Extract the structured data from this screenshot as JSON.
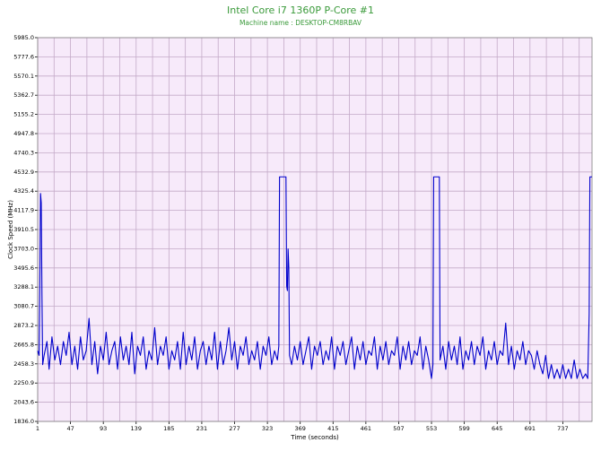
{
  "chart_data": {
    "type": "line",
    "title": "Intel Core i7 1360P P-Core #1",
    "subtitle": "Machine name : DESKTOP-CM8RBAV",
    "xlabel": "Time (seconds)",
    "ylabel": "Clock Speed (MHz)",
    "color": "#0000cc",
    "grid": true,
    "xlim": [
      1,
      778
    ],
    "ylim": [
      1836,
      5985
    ],
    "xticks": [
      1,
      47,
      93,
      139,
      185,
      231,
      277,
      323,
      369,
      415,
      461,
      507,
      553,
      599,
      645,
      691,
      737
    ],
    "yticks": [
      {
        "value": 1836,
        "label": "1836.0"
      },
      2043.6,
      2250.9,
      2458.3,
      2665.8,
      2873.2,
      3080.7,
      3288.1,
      3495.6,
      {
        "value": 3703,
        "label": "3703.0"
      },
      3910.5,
      4117.9,
      4325.4,
      4532.9,
      4740.3,
      4947.8,
      5155.2,
      5362.7,
      5570.1,
      5777.6,
      {
        "value": 5985,
        "label": "5985.0"
      }
    ],
    "x": [
      1,
      3,
      4,
      5,
      6,
      7,
      8,
      10,
      14,
      17,
      21,
      25,
      29,
      33,
      37,
      41,
      45,
      49,
      53,
      57,
      61,
      65,
      69,
      73,
      77,
      81,
      85,
      89,
      93,
      97,
      101,
      105,
      109,
      113,
      117,
      121,
      125,
      129,
      133,
      137,
      141,
      145,
      149,
      153,
      157,
      161,
      165,
      169,
      173,
      177,
      181,
      185,
      189,
      193,
      197,
      201,
      205,
      209,
      213,
      217,
      221,
      225,
      229,
      233,
      237,
      241,
      245,
      249,
      253,
      257,
      261,
      265,
      269,
      273,
      277,
      281,
      285,
      289,
      293,
      297,
      301,
      305,
      309,
      313,
      317,
      321,
      325,
      329,
      333,
      337,
      339,
      340,
      349,
      350,
      351,
      352,
      353,
      354,
      357,
      361,
      365,
      369,
      373,
      377,
      381,
      385,
      389,
      393,
      397,
      401,
      405,
      409,
      413,
      417,
      421,
      425,
      429,
      433,
      437,
      441,
      445,
      449,
      453,
      457,
      461,
      465,
      469,
      473,
      477,
      481,
      485,
      489,
      493,
      497,
      501,
      505,
      509,
      513,
      517,
      521,
      525,
      529,
      533,
      537,
      541,
      545,
      549,
      553,
      555,
      556,
      564,
      565,
      569,
      573,
      577,
      581,
      585,
      589,
      593,
      597,
      601,
      605,
      609,
      613,
      617,
      621,
      625,
      629,
      633,
      637,
      641,
      645,
      649,
      653,
      657,
      661,
      665,
      669,
      673,
      677,
      681,
      685,
      689,
      693,
      697,
      701,
      705,
      709,
      713,
      717,
      721,
      725,
      729,
      733,
      737,
      741,
      745,
      749,
      753,
      757,
      761,
      765,
      769,
      772,
      774,
      775,
      778
    ],
    "values": [
      2600,
      2550,
      3300,
      4300,
      4200,
      3200,
      2450,
      2550,
      2700,
      2400,
      2750,
      2500,
      2650,
      2450,
      2700,
      2550,
      2800,
      2450,
      2650,
      2400,
      2750,
      2500,
      2600,
      2950,
      2450,
      2700,
      2350,
      2650,
      2500,
      2800,
      2450,
      2600,
      2700,
      2400,
      2750,
      2500,
      2650,
      2450,
      2800,
      2350,
      2650,
      2550,
      2750,
      2400,
      2600,
      2500,
      2850,
      2450,
      2650,
      2550,
      2750,
      2400,
      2600,
      2500,
      2700,
      2400,
      2800,
      2450,
      2650,
      2500,
      2750,
      2400,
      2600,
      2700,
      2450,
      2650,
      2500,
      2800,
      2400,
      2700,
      2450,
      2600,
      2850,
      2500,
      2700,
      2400,
      2650,
      2550,
      2750,
      2450,
      2600,
      2500,
      2700,
      2400,
      2650,
      2550,
      2750,
      2450,
      2600,
      2500,
      2650,
      4480,
      4480,
      3300,
      3250,
      3700,
      3500,
      2550,
      2450,
      2650,
      2500,
      2700,
      2450,
      2600,
      2750,
      2400,
      2650,
      2550,
      2700,
      2450,
      2600,
      2500,
      2750,
      2400,
      2650,
      2550,
      2700,
      2450,
      2600,
      2750,
      2400,
      2650,
      2500,
      2700,
      2450,
      2600,
      2550,
      2750,
      2400,
      2650,
      2500,
      2700,
      2450,
      2600,
      2550,
      2750,
      2400,
      2650,
      2500,
      2700,
      2450,
      2600,
      2550,
      2750,
      2400,
      2650,
      2500,
      2300,
      2450,
      4480,
      4480,
      2500,
      2650,
      2400,
      2700,
      2500,
      2650,
      2450,
      2750,
      2400,
      2600,
      2500,
      2700,
      2450,
      2650,
      2550,
      2750,
      2400,
      2600,
      2500,
      2700,
      2450,
      2600,
      2550,
      2900,
      2450,
      2650,
      2400,
      2600,
      2500,
      2700,
      2450,
      2600,
      2550,
      2400,
      2600,
      2450,
      2350,
      2550,
      2300,
      2450,
      2300,
      2400,
      2300,
      2450,
      2300,
      2400,
      2300,
      2500,
      2300,
      2400,
      2300,
      2350,
      2300,
      3000,
      4480,
      4480
    ]
  }
}
